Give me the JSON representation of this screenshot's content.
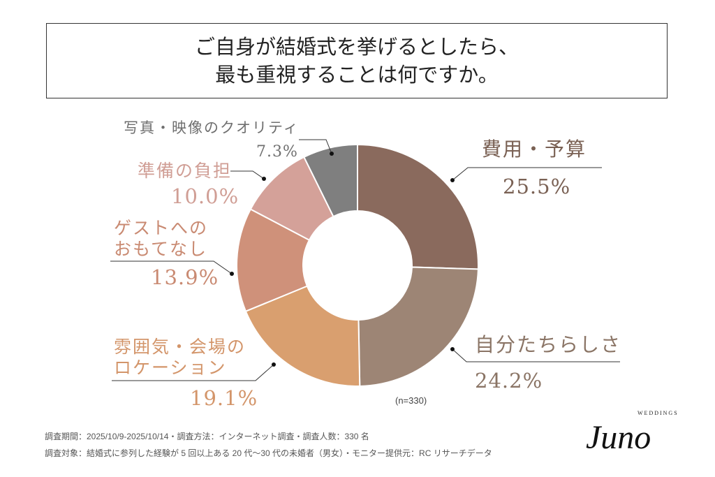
{
  "title": {
    "line1": "ご自身が結婚式を挙げるとしたら、",
    "line2": "最も重視することは何ですか。"
  },
  "chart_data": {
    "type": "pie",
    "donut": true,
    "start": "top, clockwise",
    "categories": [
      "費用・予算",
      "自分たちらしさ",
      "雰囲気・会場のロケーション",
      "ゲストへのおもてなし",
      "準備の負担",
      "写真・映像のクオリティ"
    ],
    "label_lines": [
      [
        "費用・予算"
      ],
      [
        "自分たちらしさ"
      ],
      [
        "雰囲気・会場の",
        "ロケーション"
      ],
      [
        "ゲストへの",
        "おもてなし"
      ],
      [
        "準備の負担"
      ],
      [
        "写真・映像のクオリティ"
      ]
    ],
    "values": [
      25.5,
      24.2,
      19.1,
      13.9,
      10.0,
      7.3
    ],
    "value_labels": [
      "25.5%",
      "24.2%",
      "19.1%",
      "13.9%",
      "10.0%",
      "7.3%"
    ],
    "colors": [
      "#8a6a5d",
      "#9d8575",
      "#d99f6f",
      "#cf917a",
      "#d4a199",
      "#7f7f7f"
    ],
    "label_colors": [
      "#7a6154",
      "#8a7465",
      "#d3956a",
      "#c98a72",
      "#d09e95",
      "#6f6f6f"
    ],
    "annotation": "(n=330)"
  },
  "footer": {
    "line1": "調査期間：2025/10/9-2025/10/14・調査方法：インターネット調査・調査人数：330 名",
    "line2": "調査対象：結婚式に参列した経験が 5 回以上ある 20 代〜30 代の未婚者（男女）・モニター提供元：RC リサーチデータ"
  },
  "logo": {
    "sub": "WEDDINGS",
    "name": "Juno"
  }
}
